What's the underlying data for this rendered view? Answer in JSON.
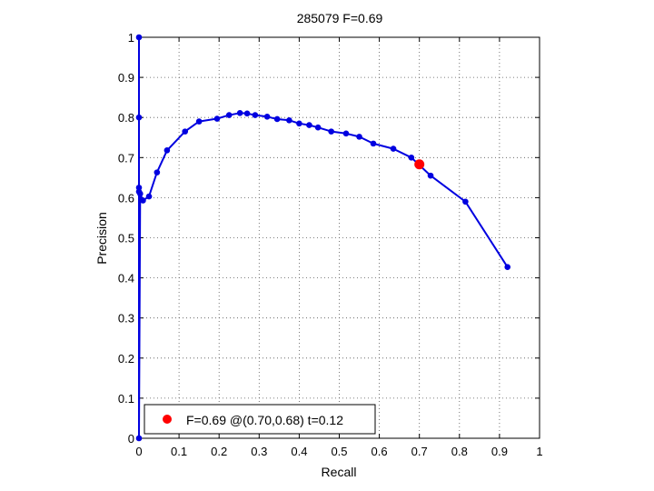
{
  "chart_data": {
    "type": "line",
    "title": "285079 F=0.69",
    "xlabel": "Recall",
    "ylabel": "Precision",
    "xlim": [
      0,
      1
    ],
    "ylim": [
      0,
      1
    ],
    "xticks": [
      "0",
      "0.1",
      "0.2",
      "0.3",
      "0.4",
      "0.5",
      "0.6",
      "0.7",
      "0.8",
      "0.9",
      "1"
    ],
    "yticks": [
      "0",
      "0.1",
      "0.2",
      "0.3",
      "0.4",
      "0.5",
      "0.6",
      "0.7",
      "0.8",
      "0.9",
      "1"
    ],
    "grid": true,
    "legend_position": "bottom-left",
    "series": [
      {
        "color": "#0000e0",
        "x": [
          0.0,
          0.0,
          0.0,
          0.0,
          0.0,
          0.003,
          0.01,
          0.025,
          0.045,
          0.07,
          0.115,
          0.15,
          0.195,
          0.225,
          0.252,
          0.27,
          0.29,
          0.32,
          0.345,
          0.375,
          0.4,
          0.425,
          0.447,
          0.48,
          0.517,
          0.55,
          0.585,
          0.635,
          0.68,
          0.728,
          0.815,
          0.92
        ],
        "y": [
          1.0,
          0.8,
          0.625,
          0.615,
          0.0,
          0.61,
          0.593,
          0.603,
          0.663,
          0.718,
          0.765,
          0.79,
          0.797,
          0.806,
          0.811,
          0.81,
          0.806,
          0.802,
          0.796,
          0.793,
          0.785,
          0.781,
          0.775,
          0.765,
          0.76,
          0.752,
          0.735,
          0.722,
          0.7,
          0.655,
          0.59,
          0.427
        ]
      }
    ],
    "highlight_point": {
      "x": 0.7,
      "y": 0.683,
      "color": "#ff0000"
    },
    "legend": {
      "label": "F=0.69 @(0.70,0.68) t=0.12"
    }
  }
}
